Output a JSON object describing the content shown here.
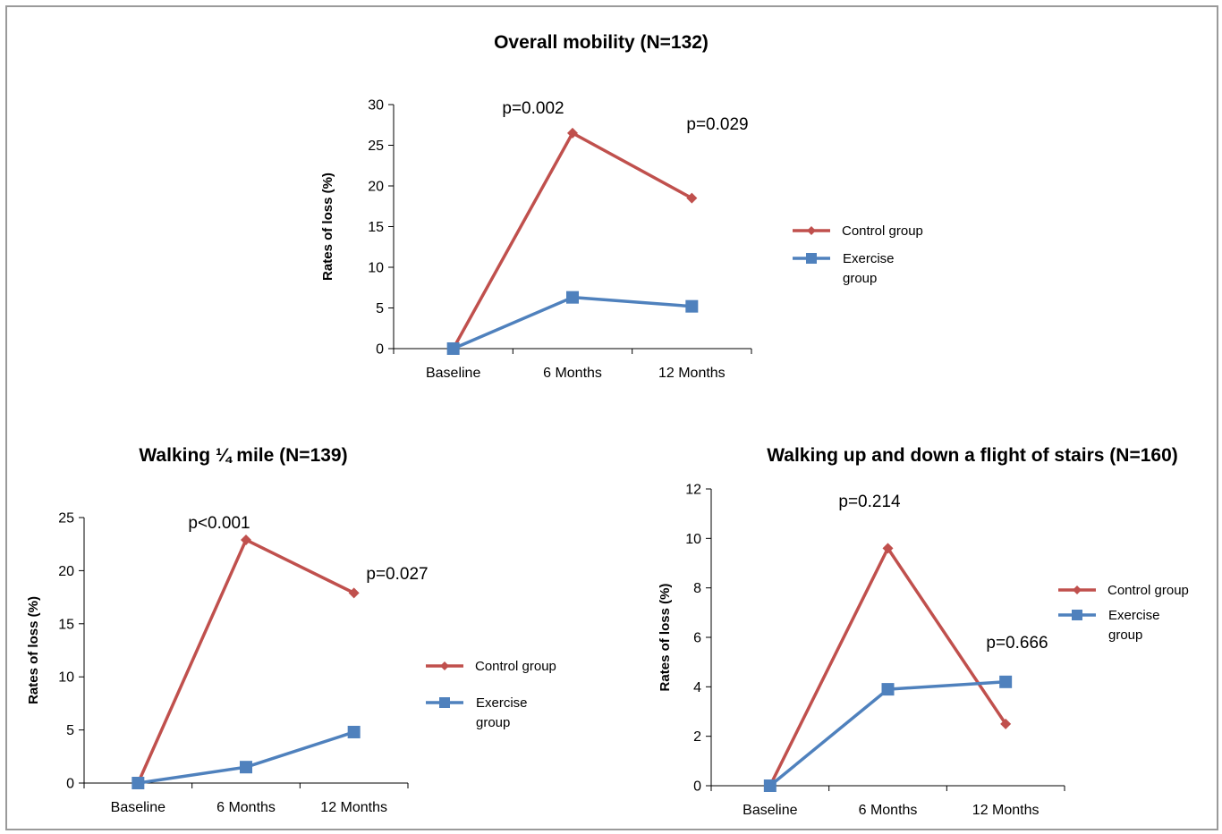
{
  "colors": {
    "control": "#c0504d",
    "exercise": "#4f81bd",
    "axis": "#000000",
    "frame": "#9a9a9a"
  },
  "chart_data": [
    {
      "type": "line",
      "title": "Overall mobility (N=132)",
      "ylabel": "Rates of loss (%)",
      "xlabel": "",
      "categories": [
        "Baseline",
        "6 Months",
        "12 Months"
      ],
      "ylim": [
        0,
        30
      ],
      "yticks": [
        0,
        5,
        10,
        15,
        20,
        25,
        30
      ],
      "grid": false,
      "legend_position": "right",
      "series": [
        {
          "name": "Control group",
          "values": [
            0,
            26.5,
            18.5
          ],
          "marker": "diamond",
          "color": "#c0504d"
        },
        {
          "name": "Exercise group",
          "legend_lines": [
            "Exercise",
            "group"
          ],
          "values": [
            0,
            6.3,
            5.2
          ],
          "marker": "square",
          "color": "#4f81bd"
        }
      ],
      "annotations": [
        {
          "text": "p=0.002",
          "category": "6 Months"
        },
        {
          "text": "p=0.029",
          "category": "12 Months"
        }
      ]
    },
    {
      "type": "line",
      "title": "Walking ¼ mile (N=139)",
      "ylabel": "Rates of loss (%)",
      "xlabel": "",
      "categories": [
        "Baseline",
        "6 Months",
        "12 Months"
      ],
      "ylim": [
        0,
        25
      ],
      "yticks": [
        0,
        5,
        10,
        15,
        20,
        25
      ],
      "grid": false,
      "legend_position": "right",
      "series": [
        {
          "name": "Control group",
          "values": [
            0,
            22.9,
            17.9
          ],
          "marker": "diamond",
          "color": "#c0504d"
        },
        {
          "name": "Exercise group",
          "legend_lines": [
            "Exercise",
            "group"
          ],
          "values": [
            0,
            1.5,
            4.8
          ],
          "marker": "square",
          "color": "#4f81bd"
        }
      ],
      "annotations": [
        {
          "text": "p<0.001",
          "category": "6 Months"
        },
        {
          "text": "p=0.027",
          "category": "12 Months"
        }
      ]
    },
    {
      "type": "line",
      "title": "Walking up and down a flight of stairs (N=160)",
      "ylabel": "Rates of loss (%)",
      "xlabel": "",
      "categories": [
        "Baseline",
        "6 Months",
        "12 Months"
      ],
      "ylim": [
        0,
        12
      ],
      "yticks": [
        0,
        2,
        4,
        6,
        8,
        10,
        12
      ],
      "grid": false,
      "legend_position": "right",
      "series": [
        {
          "name": "Control group",
          "values": [
            0,
            9.6,
            2.5
          ],
          "marker": "diamond",
          "color": "#c0504d"
        },
        {
          "name": "Exercise group",
          "legend_lines": [
            "Exercise",
            "group"
          ],
          "values": [
            0,
            3.9,
            4.2
          ],
          "marker": "square",
          "color": "#4f81bd"
        }
      ],
      "annotations": [
        {
          "text": "p=0.214",
          "category": "6 Months"
        },
        {
          "text": "p=0.666",
          "category": "12 Months"
        }
      ]
    }
  ]
}
